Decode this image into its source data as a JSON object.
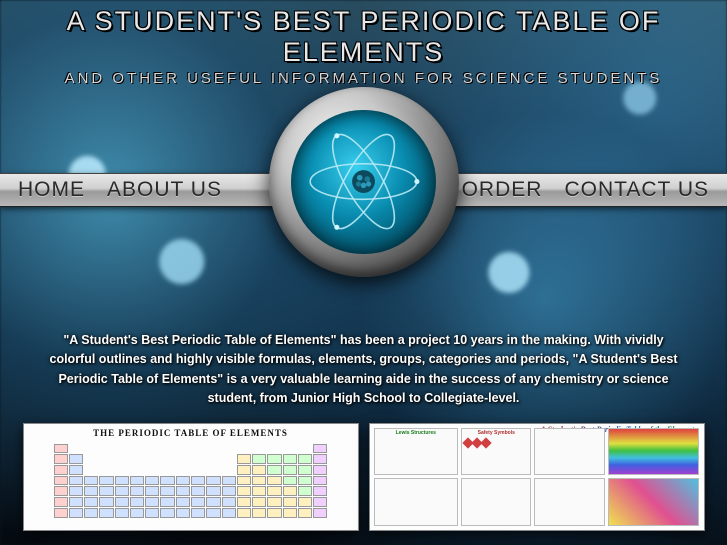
{
  "header": {
    "title": "A STUDENT'S BEST PERIODIC TABLE OF ELEMENTS",
    "subtitle": "AND OTHER USEFUL INFORMATION FOR SCIENCE STUDENTS"
  },
  "nav": {
    "left": [
      {
        "label": "HOME",
        "name": "nav-home"
      },
      {
        "label": "ABOUT US",
        "name": "nav-about"
      }
    ],
    "right": [
      {
        "label": "ORDER",
        "name": "nav-order"
      },
      {
        "label": "CONTACT US",
        "name": "nav-contact"
      }
    ]
  },
  "logo": {
    "ring_gradient": [
      "#f0f0f0",
      "#888888",
      "#222222"
    ],
    "inner_gradient": [
      "#3ad0f0",
      "#0a8db0",
      "#011820"
    ],
    "orbit_color": "#b8eaf5",
    "nucleus_color": "#1a6a85"
  },
  "description": "\"A Student's Best Periodic Table of Elements\" has been a project 10 years in the making. With vividly colorful outlines and highly visible formulas, elements, groups, categories and periods, \"A Student's Best Periodic Table of Elements\" is a very valuable learning aide in the success of any chemistry or science student, from Junior High School to Collegiate-level.",
  "posters": {
    "left": {
      "title": "THE PERIODIC TABLE OF ELEMENTS",
      "colors": {
        "alkali": "#ffd0d0",
        "metal": "#d0e0ff",
        "nonmetal": "#d0ffd0",
        "metalloid": "#fff0c0",
        "noble": "#f0d0ff"
      }
    },
    "right": {
      "title": "A Student's Best Periodic Table of the Elements",
      "panels": [
        {
          "heading": "Lewis Structures"
        },
        {
          "heading": "Safety Symbols"
        },
        {
          "heading": ""
        },
        {
          "heading": ""
        },
        {
          "heading": ""
        },
        {
          "heading": ""
        }
      ]
    }
  },
  "theme": {
    "bg_top": "#2a4a5a",
    "bg_bottom": "#050a10",
    "text_light": "#e8e8e8",
    "nav_bg_top": "#e8e8e8",
    "nav_bg_bottom": "#b8b8b8",
    "nav_text": "#2a2a2a"
  }
}
